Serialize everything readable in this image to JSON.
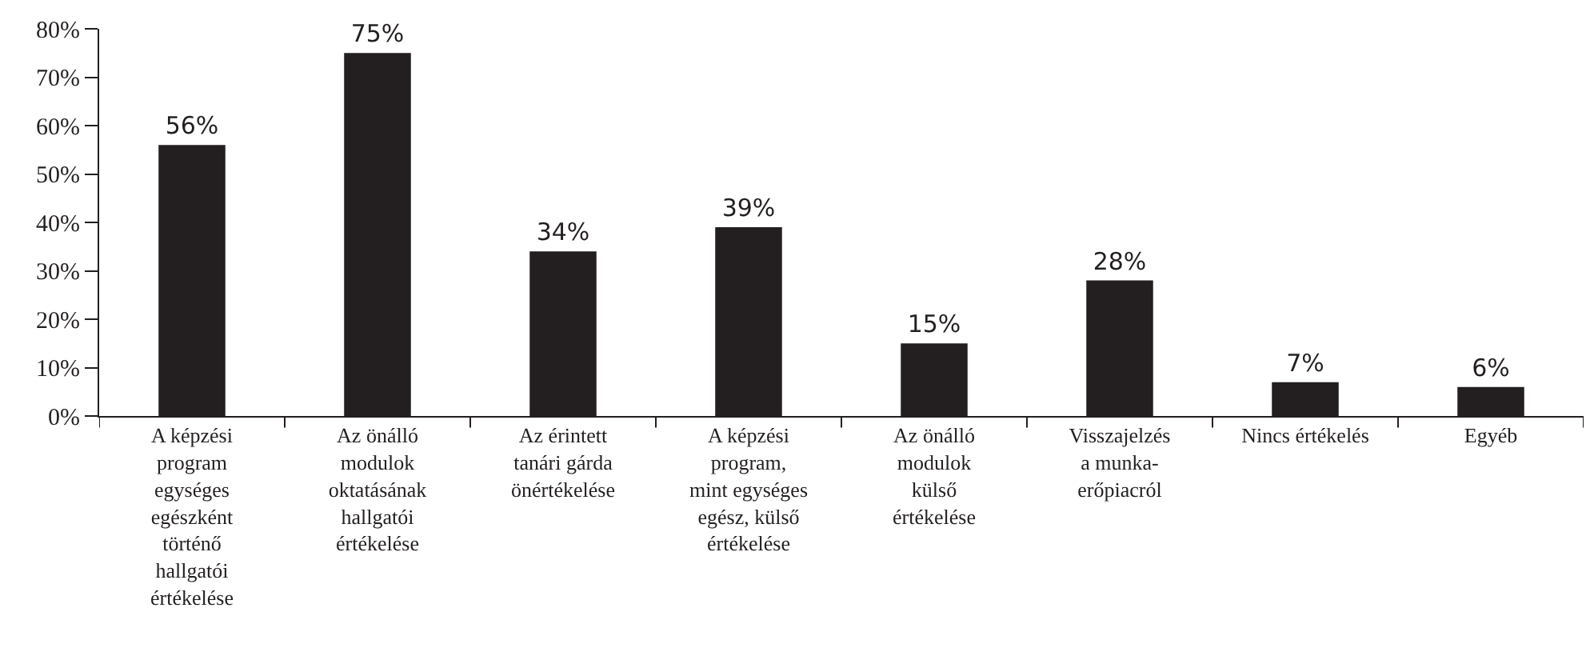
{
  "chart_data": {
    "type": "bar",
    "categories": [
      "A képzési\nprogram\negységes\negészként\ntörténő\nhallgatói\nértékelése",
      "Az önálló\nmodulok\noktatásának\nhallgatói\nértékelése",
      "Az érintett\ntanári gárda\nönértékelése",
      "A képzési\nprogram,\nmint egységes\negész, külső\nértékelése",
      "Az önálló\nmodulok\nkülső\nértékelése",
      "Visszajelzés\na munka-\nerőpiacról",
      "Nincs értékelés",
      "Egyéb"
    ],
    "values": [
      56,
      75,
      34,
      39,
      15,
      28,
      7,
      6
    ],
    "value_labels": [
      "56%",
      "75%",
      "34%",
      "39%",
      "15%",
      "28%",
      "7%",
      "6%"
    ],
    "color": "#231f20",
    "ylim": [
      0,
      80
    ],
    "yticks": [
      {
        "value": 0,
        "label": "0%"
      },
      {
        "value": 10,
        "label": "10%"
      },
      {
        "value": 20,
        "label": "20%"
      },
      {
        "value": 30,
        "label": "30%"
      },
      {
        "value": 40,
        "label": "40%"
      },
      {
        "value": 50,
        "label": "50%"
      },
      {
        "value": 60,
        "label": "60%"
      },
      {
        "value": 70,
        "label": "70%"
      },
      {
        "value": 80,
        "label": "80%"
      }
    ],
    "grid": false
  }
}
